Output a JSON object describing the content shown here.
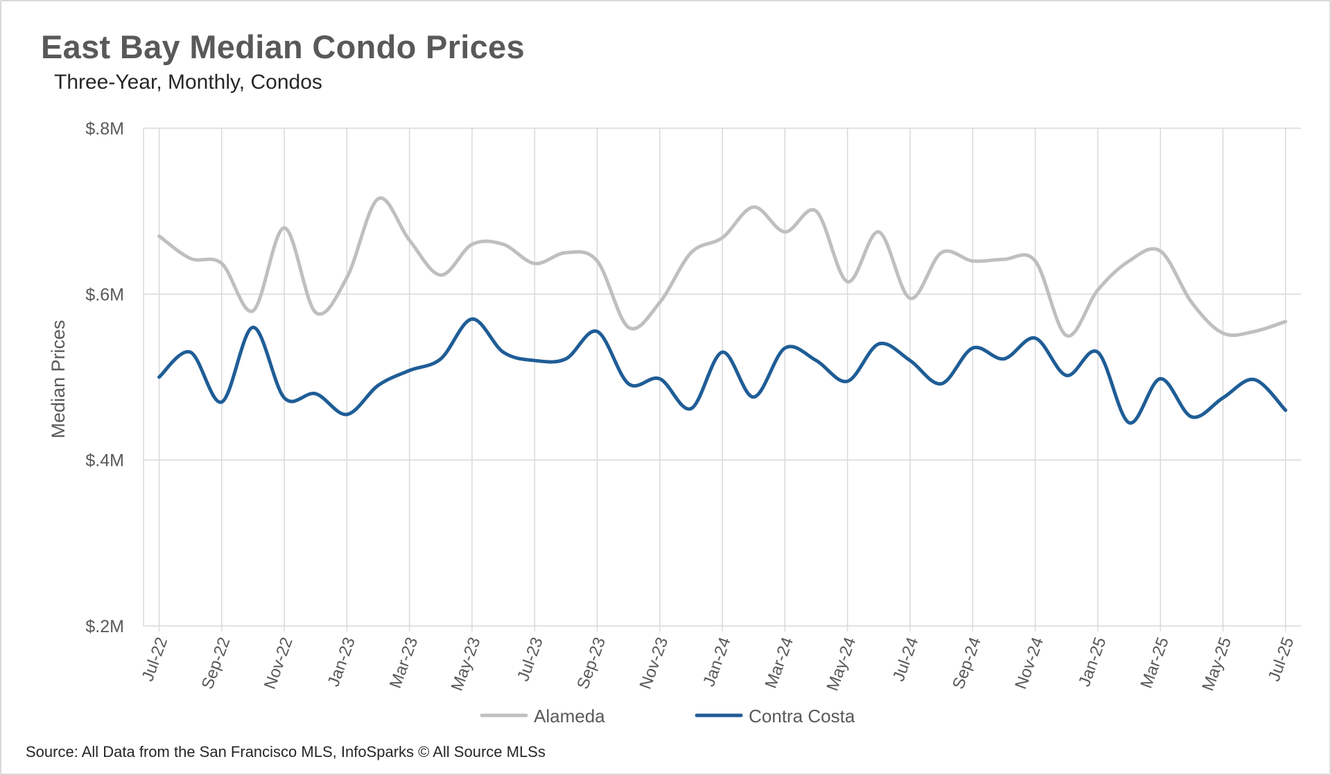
{
  "title": "East Bay Median Condo Prices",
  "subtitle": "Three-Year, Monthly, Condos",
  "source": "Source: All Data from the San Francisco MLS, InfoSparks © All Source MLSs",
  "chart_data": {
    "type": "line",
    "title": "East Bay Median Condo Prices",
    "subtitle": "Three-Year, Monthly, Condos",
    "xlabel": "",
    "ylabel": "Median Prices",
    "ylim": [
      200000,
      800000
    ],
    "yticks": [
      200000,
      400000,
      600000,
      800000
    ],
    "ytick_labels": [
      "$.2M",
      "$.4M",
      "$.6M",
      "$.8M"
    ],
    "grid": true,
    "legend_position": "bottom",
    "x": [
      "Jul-22",
      "Aug-22",
      "Sep-22",
      "Oct-22",
      "Nov-22",
      "Dec-22",
      "Jan-23",
      "Feb-23",
      "Mar-23",
      "Apr-23",
      "May-23",
      "Jun-23",
      "Jul-23",
      "Aug-23",
      "Sep-23",
      "Oct-23",
      "Nov-23",
      "Dec-23",
      "Jan-24",
      "Feb-24",
      "Mar-24",
      "Apr-24",
      "May-24",
      "Jun-24",
      "Jul-24",
      "Aug-24",
      "Sep-24",
      "Oct-24",
      "Nov-24",
      "Dec-24",
      "Jan-25",
      "Feb-25",
      "Mar-25",
      "Apr-25",
      "May-25",
      "Jun-25",
      "Jul-25"
    ],
    "x_tick_labels": [
      "Jul-22",
      "Sep-22",
      "Nov-22",
      "Jan-23",
      "Mar-23",
      "May-23",
      "Jul-23",
      "Sep-23",
      "Nov-23",
      "Jan-24",
      "Mar-24",
      "May-24",
      "Jul-24",
      "Sep-24",
      "Nov-24",
      "Jan-25",
      "Mar-25",
      "May-25",
      "Jul-25"
    ],
    "series": [
      {
        "name": "Alameda",
        "color": "#bfbfbf",
        "values": [
          670000,
          643000,
          637000,
          580000,
          680000,
          578000,
          620000,
          715000,
          665000,
          623000,
          660000,
          660000,
          637000,
          650000,
          640000,
          560000,
          590000,
          650000,
          668000,
          705000,
          675000,
          700000,
          615000,
          675000,
          595000,
          650000,
          640000,
          642000,
          640000,
          550000,
          605000,
          640000,
          652000,
          590000,
          553000,
          555000,
          567000
        ]
      },
      {
        "name": "Contra Costa",
        "color": "#1f5d96",
        "values": [
          500000,
          530000,
          470000,
          560000,
          475000,
          480000,
          455000,
          490000,
          508000,
          522000,
          570000,
          530000,
          520000,
          522000,
          555000,
          492000,
          498000,
          462000,
          530000,
          476000,
          535000,
          520000,
          495000,
          540000,
          520000,
          492000,
          535000,
          522000,
          547000,
          502000,
          530000,
          445000,
          498000,
          452000,
          475000,
          497000,
          460000
        ]
      }
    ]
  }
}
